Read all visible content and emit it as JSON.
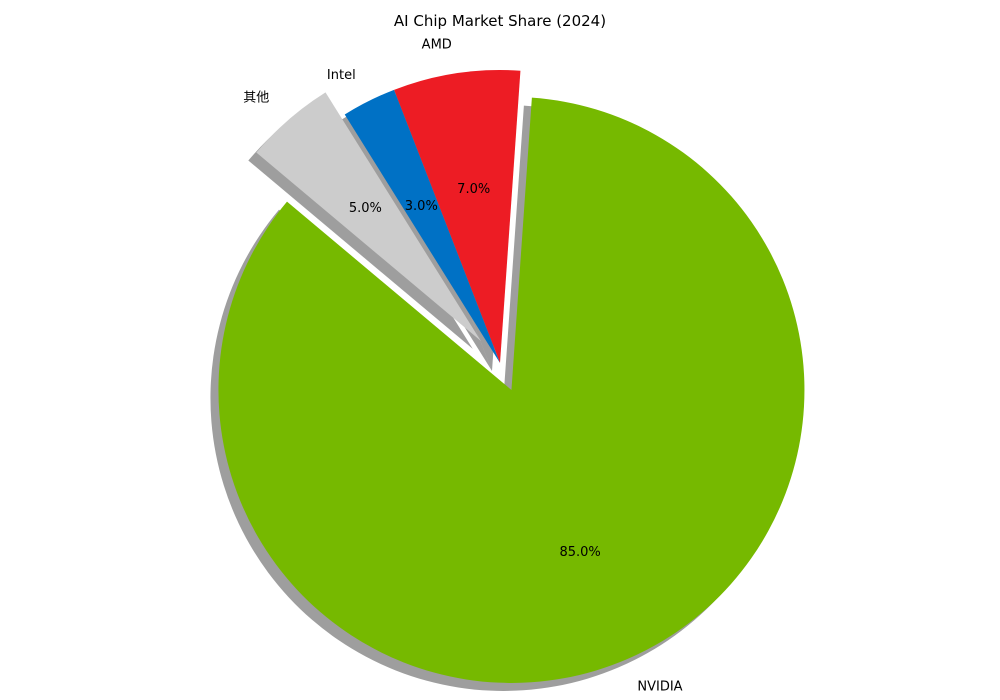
{
  "chart_data": {
    "type": "pie",
    "title": "AI Chip Market Share (2024)",
    "slices": [
      {
        "label": "NVIDIA",
        "value": 85.0,
        "pct_text": "85.0%",
        "color": "#76b900",
        "exploded": true
      },
      {
        "label": "AMD",
        "value": 7.0,
        "pct_text": "7.0%",
        "color": "#ed1c24",
        "exploded": false
      },
      {
        "label": "Intel",
        "value": 3.0,
        "pct_text": "3.0%",
        "color": "#0071c5",
        "exploded": false
      },
      {
        "label": "其他",
        "value": 5.0,
        "pct_text": "5.0%",
        "color": "#cccccc",
        "exploded": true
      }
    ],
    "shadow": true
  }
}
